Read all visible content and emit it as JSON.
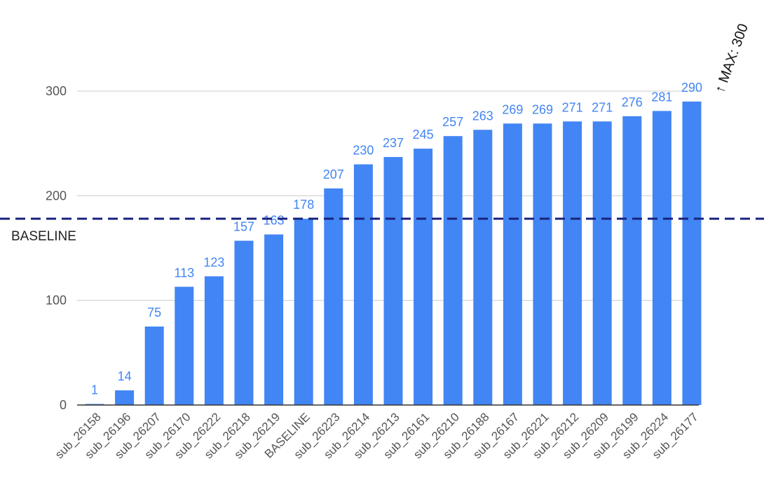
{
  "chart_data": {
    "type": "bar",
    "title": "",
    "xlabel": "",
    "ylabel": "",
    "ylim": [
      0,
      300
    ],
    "y_ticks": [
      0,
      100,
      200,
      300
    ],
    "grid": true,
    "legend": "none",
    "categories": [
      "sub_26158",
      "sub_26196",
      "sub_26207",
      "sub_26170",
      "sub_26222",
      "sub_26218",
      "sub_26219",
      "BASELINE",
      "sub_26223",
      "sub_26214",
      "sub_26213",
      "sub_26161",
      "sub_26210",
      "sub_26188",
      "sub_26167",
      "sub_26221",
      "sub_26212",
      "sub_26209",
      "sub_26199",
      "sub_26224",
      "sub_26177"
    ],
    "values": [
      1,
      14,
      75,
      113,
      123,
      157,
      163,
      178,
      207,
      230,
      237,
      245,
      257,
      263,
      269,
      269,
      271,
      271,
      276,
      281,
      290
    ],
    "baseline": {
      "label": "BASELINE",
      "value": 178
    },
    "max_annotation": {
      "text": "↑ MAX: 300",
      "value": 300
    },
    "colors": {
      "bar": "#4285f4",
      "data_label": "#4285f4",
      "baseline_line": "#1a237e",
      "grid": "#cccccc",
      "axis": "#333333",
      "tick_label": "#555555"
    }
  }
}
